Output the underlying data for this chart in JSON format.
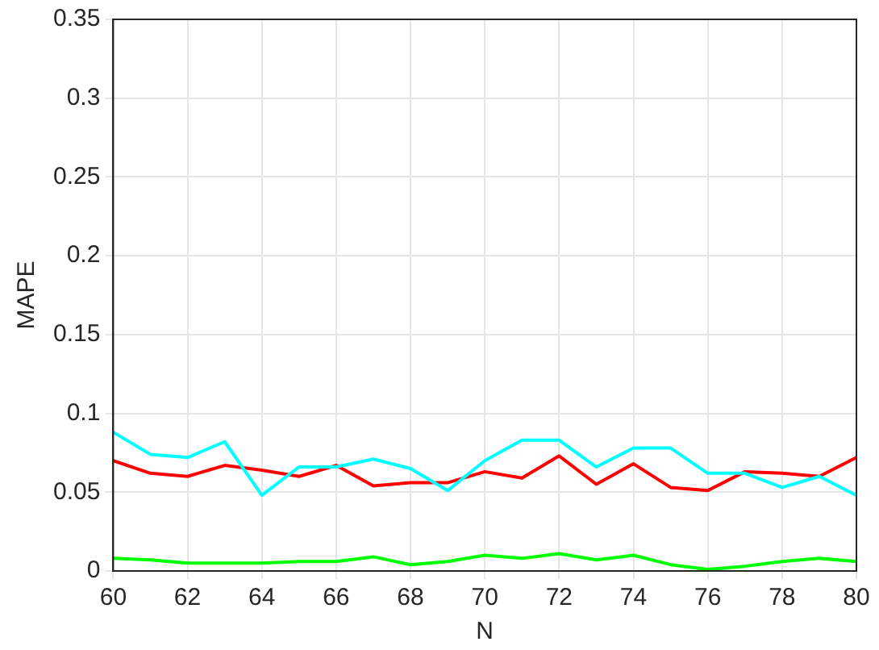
{
  "chart_data": {
    "type": "line",
    "xlabel": "N",
    "ylabel": "MAPE",
    "x": [
      60,
      61,
      62,
      63,
      64,
      65,
      66,
      67,
      68,
      69,
      70,
      71,
      72,
      73,
      74,
      75,
      76,
      77,
      78,
      79,
      80
    ],
    "series": [
      {
        "color": "#00ffff",
        "values": [
          0.088,
          0.074,
          0.072,
          0.082,
          0.048,
          0.066,
          0.066,
          0.071,
          0.065,
          0.051,
          0.07,
          0.083,
          0.083,
          0.066,
          0.078,
          0.078,
          0.062,
          0.062,
          0.053,
          0.06,
          0.048
        ]
      },
      {
        "color": "#ff0000",
        "values": [
          0.07,
          0.062,
          0.06,
          0.067,
          0.064,
          0.06,
          0.067,
          0.054,
          0.056,
          0.056,
          0.063,
          0.059,
          0.073,
          0.055,
          0.068,
          0.053,
          0.051,
          0.063,
          0.062,
          0.06,
          0.072
        ]
      },
      {
        "color": "#00ff00",
        "values": [
          0.008,
          0.007,
          0.005,
          0.005,
          0.005,
          0.006,
          0.006,
          0.009,
          0.004,
          0.006,
          0.01,
          0.008,
          0.011,
          0.007,
          0.01,
          0.004,
          0.001,
          0.003,
          0.006,
          0.008,
          0.006
        ]
      }
    ],
    "xlim": [
      60,
      80
    ],
    "xticks": [
      60,
      62,
      64,
      66,
      68,
      70,
      72,
      74,
      76,
      78,
      80
    ],
    "ylim": [
      0,
      0.35
    ],
    "yticks": [
      0,
      0.05,
      0.1,
      0.15,
      0.2,
      0.25,
      0.3,
      0.35
    ],
    "grid": true,
    "legend": false,
    "marker": "none",
    "line_style": "solid"
  }
}
